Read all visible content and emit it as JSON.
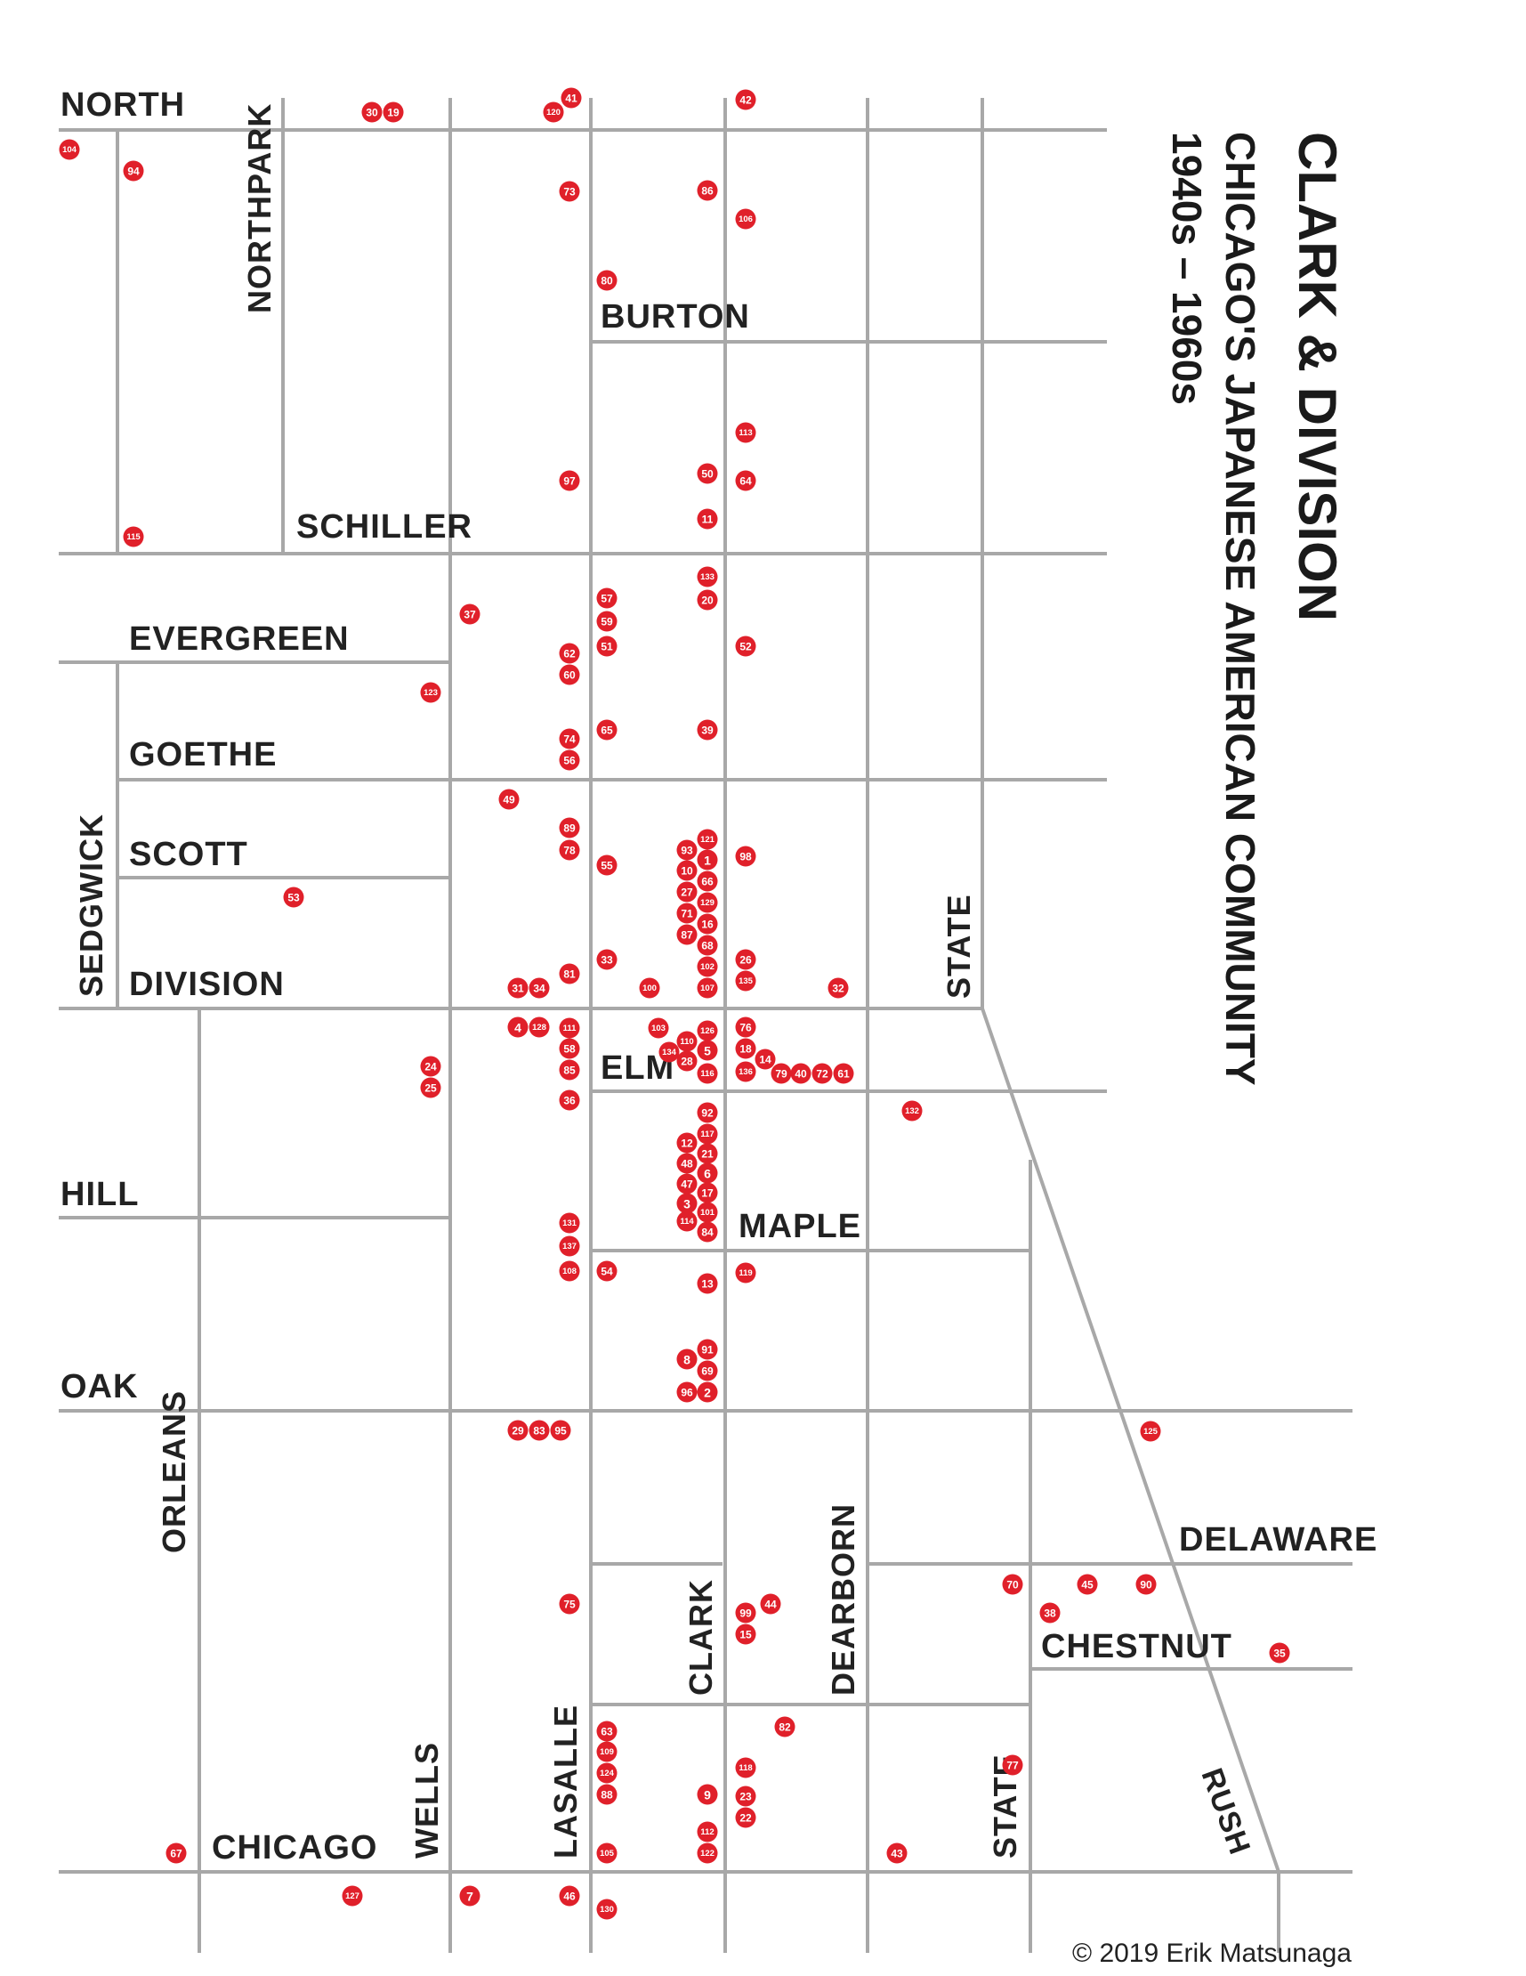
{
  "title": {
    "line1": "CLARK & DIVISION",
    "line2": "CHICAGO'S JAPANESE AMERICAN COMMUNITY",
    "line3": "1940s – 1960s"
  },
  "credit": "© 2019 Erik Matsunaga",
  "colors": {
    "marker": "#e0202a",
    "street": "#a8a8a8",
    "label": "#222222"
  },
  "street_labels": {
    "north": "NORTH",
    "northpark": "NORTHPARK",
    "burton": "BURTON",
    "schiller": "SCHILLER",
    "evergreen": "EVERGREEN",
    "goethe": "GOETHE",
    "scott": "SCOTT",
    "sedgwick": "SEDGWICK",
    "division": "DIVISION",
    "state_north": "STATE",
    "elm": "ELM",
    "hill": "HILL",
    "maple": "MAPLE",
    "oak": "OAK",
    "orleans": "ORLEANS",
    "delaware": "DELAWARE",
    "chestnut": "CHESTNUT",
    "clark": "CLARK",
    "dearborn": "DEARBORN",
    "chicago": "CHICAGO",
    "wells": "WELLS",
    "lasalle": "LASALLE",
    "state_south": "STATE",
    "rush": "RUSH"
  },
  "markers": [
    "104",
    "94",
    "30",
    "19",
    "41",
    "120",
    "42",
    "73",
    "86",
    "106",
    "80",
    "113",
    "97",
    "50",
    "64",
    "11",
    "115",
    "133",
    "20",
    "57",
    "59",
    "51",
    "37",
    "62",
    "60",
    "52",
    "123",
    "74",
    "56",
    "65",
    "39",
    "49",
    "89",
    "78",
    "93",
    "121",
    "1",
    "10",
    "66",
    "98",
    "55",
    "53",
    "27",
    "129",
    "71",
    "16",
    "87",
    "68",
    "33",
    "26",
    "102",
    "135",
    "81",
    "31",
    "34",
    "100",
    "107",
    "32",
    "4",
    "128",
    "111",
    "103",
    "126",
    "76",
    "110",
    "134",
    "5",
    "18",
    "58",
    "28",
    "14",
    "85",
    "116",
    "136",
    "79",
    "40",
    "72",
    "61",
    "24",
    "25",
    "36",
    "92",
    "132",
    "117",
    "12",
    "21",
    "48",
    "6",
    "47",
    "17",
    "3",
    "101",
    "131",
    "114",
    "84",
    "137",
    "108",
    "54",
    "119",
    "13",
    "91",
    "8",
    "69",
    "96",
    "2",
    "29",
    "83",
    "95",
    "125",
    "70",
    "45",
    "90",
    "75",
    "99",
    "44",
    "38",
    "15",
    "35",
    "63",
    "82",
    "109",
    "124",
    "118",
    "77",
    "88",
    "9",
    "23",
    "22",
    "112",
    "67",
    "105",
    "122",
    "43",
    "127",
    "7",
    "46",
    "130"
  ]
}
